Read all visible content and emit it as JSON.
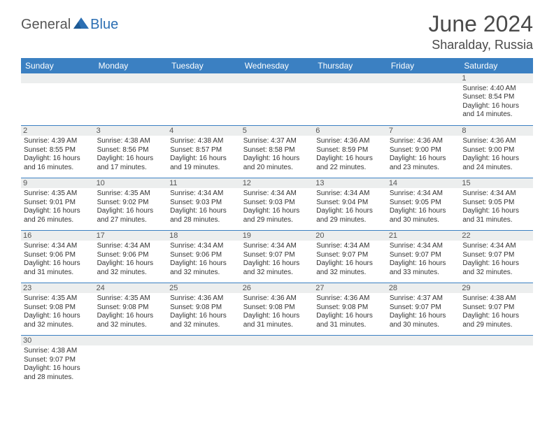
{
  "logo": {
    "part1": "General",
    "part2": "Blue"
  },
  "title": {
    "month": "June 2024",
    "location": "Sharalday, Russia"
  },
  "header_bg": "#3b80c2",
  "days_of_week": [
    "Sunday",
    "Monday",
    "Tuesday",
    "Wednesday",
    "Thursday",
    "Friday",
    "Saturday"
  ],
  "weeks": [
    [
      null,
      null,
      null,
      null,
      null,
      null,
      {
        "n": "1",
        "sr": "4:40 AM",
        "ss": "8:54 PM",
        "dl": "16 hours and 14 minutes."
      }
    ],
    [
      {
        "n": "2",
        "sr": "4:39 AM",
        "ss": "8:55 PM",
        "dl": "16 hours and 16 minutes."
      },
      {
        "n": "3",
        "sr": "4:38 AM",
        "ss": "8:56 PM",
        "dl": "16 hours and 17 minutes."
      },
      {
        "n": "4",
        "sr": "4:38 AM",
        "ss": "8:57 PM",
        "dl": "16 hours and 19 minutes."
      },
      {
        "n": "5",
        "sr": "4:37 AM",
        "ss": "8:58 PM",
        "dl": "16 hours and 20 minutes."
      },
      {
        "n": "6",
        "sr": "4:36 AM",
        "ss": "8:59 PM",
        "dl": "16 hours and 22 minutes."
      },
      {
        "n": "7",
        "sr": "4:36 AM",
        "ss": "9:00 PM",
        "dl": "16 hours and 23 minutes."
      },
      {
        "n": "8",
        "sr": "4:36 AM",
        "ss": "9:00 PM",
        "dl": "16 hours and 24 minutes."
      }
    ],
    [
      {
        "n": "9",
        "sr": "4:35 AM",
        "ss": "9:01 PM",
        "dl": "16 hours and 26 minutes."
      },
      {
        "n": "10",
        "sr": "4:35 AM",
        "ss": "9:02 PM",
        "dl": "16 hours and 27 minutes."
      },
      {
        "n": "11",
        "sr": "4:34 AM",
        "ss": "9:03 PM",
        "dl": "16 hours and 28 minutes."
      },
      {
        "n": "12",
        "sr": "4:34 AM",
        "ss": "9:03 PM",
        "dl": "16 hours and 29 minutes."
      },
      {
        "n": "13",
        "sr": "4:34 AM",
        "ss": "9:04 PM",
        "dl": "16 hours and 29 minutes."
      },
      {
        "n": "14",
        "sr": "4:34 AM",
        "ss": "9:05 PM",
        "dl": "16 hours and 30 minutes."
      },
      {
        "n": "15",
        "sr": "4:34 AM",
        "ss": "9:05 PM",
        "dl": "16 hours and 31 minutes."
      }
    ],
    [
      {
        "n": "16",
        "sr": "4:34 AM",
        "ss": "9:06 PM",
        "dl": "16 hours and 31 minutes."
      },
      {
        "n": "17",
        "sr": "4:34 AM",
        "ss": "9:06 PM",
        "dl": "16 hours and 32 minutes."
      },
      {
        "n": "18",
        "sr": "4:34 AM",
        "ss": "9:06 PM",
        "dl": "16 hours and 32 minutes."
      },
      {
        "n": "19",
        "sr": "4:34 AM",
        "ss": "9:07 PM",
        "dl": "16 hours and 32 minutes."
      },
      {
        "n": "20",
        "sr": "4:34 AM",
        "ss": "9:07 PM",
        "dl": "16 hours and 32 minutes."
      },
      {
        "n": "21",
        "sr": "4:34 AM",
        "ss": "9:07 PM",
        "dl": "16 hours and 33 minutes."
      },
      {
        "n": "22",
        "sr": "4:34 AM",
        "ss": "9:07 PM",
        "dl": "16 hours and 32 minutes."
      }
    ],
    [
      {
        "n": "23",
        "sr": "4:35 AM",
        "ss": "9:08 PM",
        "dl": "16 hours and 32 minutes."
      },
      {
        "n": "24",
        "sr": "4:35 AM",
        "ss": "9:08 PM",
        "dl": "16 hours and 32 minutes."
      },
      {
        "n": "25",
        "sr": "4:36 AM",
        "ss": "9:08 PM",
        "dl": "16 hours and 32 minutes."
      },
      {
        "n": "26",
        "sr": "4:36 AM",
        "ss": "9:08 PM",
        "dl": "16 hours and 31 minutes."
      },
      {
        "n": "27",
        "sr": "4:36 AM",
        "ss": "9:08 PM",
        "dl": "16 hours and 31 minutes."
      },
      {
        "n": "28",
        "sr": "4:37 AM",
        "ss": "9:07 PM",
        "dl": "16 hours and 30 minutes."
      },
      {
        "n": "29",
        "sr": "4:38 AM",
        "ss": "9:07 PM",
        "dl": "16 hours and 29 minutes."
      }
    ],
    [
      {
        "n": "30",
        "sr": "4:38 AM",
        "ss": "9:07 PM",
        "dl": "16 hours and 28 minutes."
      },
      null,
      null,
      null,
      null,
      null,
      null
    ]
  ],
  "labels": {
    "sunrise": "Sunrise:",
    "sunset": "Sunset:",
    "daylight": "Daylight:"
  }
}
